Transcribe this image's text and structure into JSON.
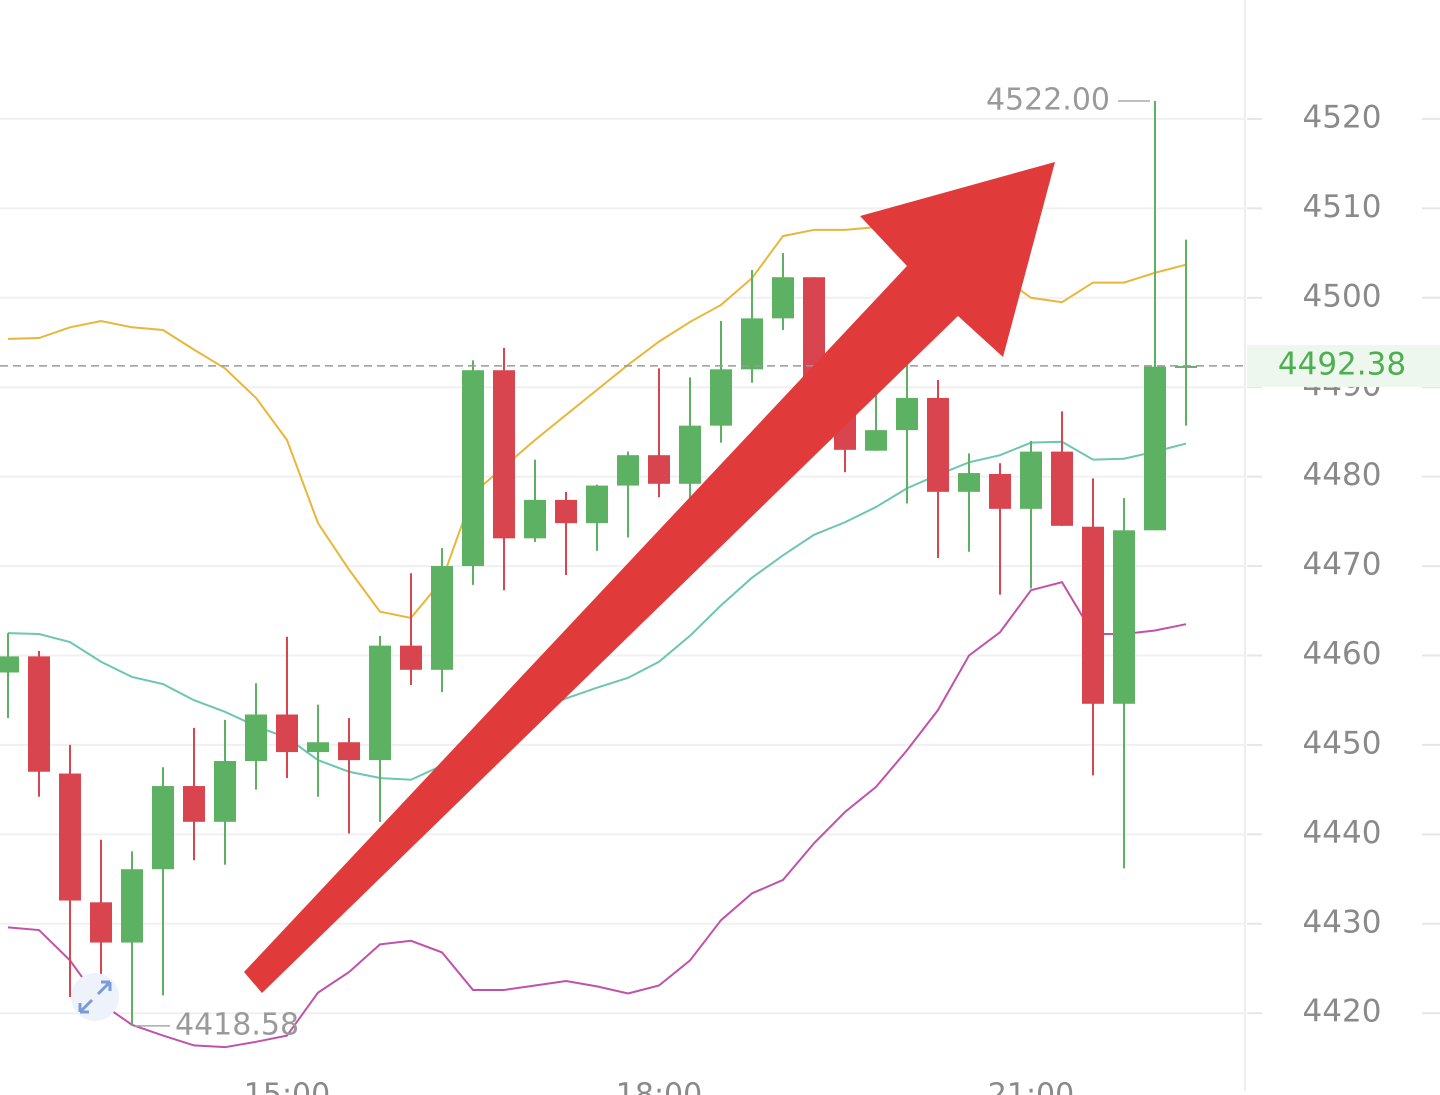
{
  "chart_data": {
    "type": "candlestick",
    "categories": [
      null,
      null,
      null,
      null,
      null,
      null,
      null,
      null,
      null,
      "15:00",
      null,
      null,
      null,
      null,
      null,
      null,
      null,
      null,
      null,
      null,
      null,
      "18:00",
      null,
      null,
      null,
      null,
      null,
      null,
      null,
      null,
      null,
      null,
      null,
      "21:00",
      null,
      null,
      null,
      null,
      null
    ],
    "open": [
      4458.1,
      4459.9,
      4446.8,
      4432.4,
      4427.9,
      4436.1,
      4445.4,
      4441.4,
      4448.2,
      4453.4,
      4449.2,
      4450.3,
      4448.3,
      4461.1,
      4458.4,
      4470.0,
      4491.9,
      4473.1,
      4477.4,
      4474.8,
      4479.0,
      4482.4,
      4479.2,
      4485.7,
      4492.0,
      4497.7,
      4502.3,
      4487.5,
      4482.9,
      4485.2,
      4488.8,
      4478.3,
      4480.3,
      4476.4,
      4482.8,
      4474.4,
      4454.6,
      4474.0,
      4492.3
    ],
    "high": [
      4462.5,
      4460.5,
      4450.0,
      4439.4,
      4438.1,
      4447.5,
      4451.9,
      4452.8,
      4456.9,
      4462.1,
      4454.5,
      4453.0,
      4462.2,
      4469.2,
      4472.0,
      4493.0,
      4494.4,
      4481.9,
      4478.3,
      4479.1,
      4482.8,
      4492.1,
      4491.1,
      4497.4,
      4503.1,
      4505.0,
      4502.3,
      4489.0,
      4489.5,
      4492.5,
      4490.8,
      4482.6,
      4481.5,
      4484.0,
      4487.3,
      4479.8,
      4477.6,
      4522.0,
      4506.5
    ],
    "low": [
      4453.0,
      4444.2,
      4421.8,
      4423.1,
      4418.58,
      4422.0,
      4437.1,
      4436.6,
      4445.0,
      4446.3,
      4444.2,
      4440.1,
      4441.4,
      4456.7,
      4455.9,
      4467.9,
      4467.3,
      4472.7,
      4469.0,
      4471.7,
      4473.2,
      4477.7,
      4477.4,
      4483.8,
      4490.5,
      4496.4,
      4486.0,
      4480.5,
      4482.9,
      4477.0,
      4470.9,
      4471.6,
      4466.8,
      4467.5,
      4474.5,
      4446.6,
      4436.2,
      4474.0,
      4485.7
    ],
    "close": [
      4459.9,
      4447.0,
      4432.6,
      4427.9,
      4436.1,
      4445.4,
      4441.4,
      4448.2,
      4453.4,
      4449.2,
      4450.3,
      4448.3,
      4461.1,
      4458.4,
      4470.0,
      4491.9,
      4473.1,
      4477.4,
      4474.8,
      4479.0,
      4482.4,
      4479.2,
      4485.7,
      4492.0,
      4497.7,
      4502.3,
      4487.5,
      4483.0,
      4485.2,
      4488.8,
      4478.3,
      4480.4,
      4476.4,
      4482.8,
      4474.5,
      4454.6,
      4474.0,
      4492.3,
      4492.38
    ],
    "up_color": "#5cb162",
    "down_color": "#d9454f",
    "bands": [
      {
        "color": "#e8b73a",
        "values": [
          4495.4,
          4495.5,
          4496.7,
          4497.4,
          4496.7,
          4496.4,
          4494.2,
          4492.1,
          4488.8,
          4484.1,
          4474.8,
          4469.6,
          4464.9,
          4464.2,
          4468.4,
          4478.1,
          4481.1,
          4484.1,
          4486.9,
          4489.7,
          4492.5,
          4495.1,
          4497.3,
          4499.2,
          4502.2,
          4506.9,
          4507.6,
          4507.6,
          4507.9,
          4507.5,
          4506.4,
          4504.7,
          4502.5,
          4500.0,
          4499.5,
          4501.7,
          4501.7,
          4502.8,
          4503.7
        ]
      },
      {
        "color": "#6cc6b0",
        "values": [
          4462.5,
          4462.4,
          4461.5,
          4459.3,
          4457.6,
          4456.8,
          4455.0,
          4453.7,
          4452.1,
          4450.8,
          4448.3,
          4447.0,
          4446.3,
          4446.1,
          4447.7,
          4450.0,
          4451.9,
          4453.9,
          4455.2,
          4456.4,
          4457.5,
          4459.3,
          4462.2,
          4465.6,
          4468.7,
          4471.2,
          4473.5,
          4474.9,
          4476.6,
          4478.7,
          4480.2,
          4481.6,
          4482.4,
          4483.8,
          4483.9,
          4481.9,
          4482.0,
          4482.8,
          4483.7
        ]
      },
      {
        "color": "#c052a8",
        "values": [
          4429.6,
          4429.3,
          4425.9,
          4421.1,
          4418.7,
          4417.5,
          4416.4,
          4416.2,
          4416.8,
          4417.5,
          4422.3,
          4424.6,
          4427.7,
          4428.1,
          4426.8,
          4422.6,
          4422.6,
          4423.1,
          4423.6,
          4423.0,
          4422.2,
          4423.1,
          4425.9,
          4430.4,
          4433.4,
          4434.9,
          4439.0,
          4442.5,
          4445.3,
          4449.4,
          4453.9,
          4460.0,
          4462.6,
          4467.3,
          4468.2,
          4462.4,
          4462.4,
          4462.8,
          4463.5
        ]
      }
    ],
    "ylim": [
      4411.3,
      4533.3
    ],
    "yticks": [
      4420,
      4430,
      4440,
      4450,
      4460,
      4470,
      4480,
      4490,
      4500,
      4510,
      4520
    ],
    "grid": true,
    "high_label": {
      "value": 4522,
      "label": "4522.00"
    },
    "low_label": {
      "value": 4418.58,
      "label": "4418.58"
    },
    "last_price": {
      "value": 4492.38,
      "label": "4492.38"
    }
  }
}
